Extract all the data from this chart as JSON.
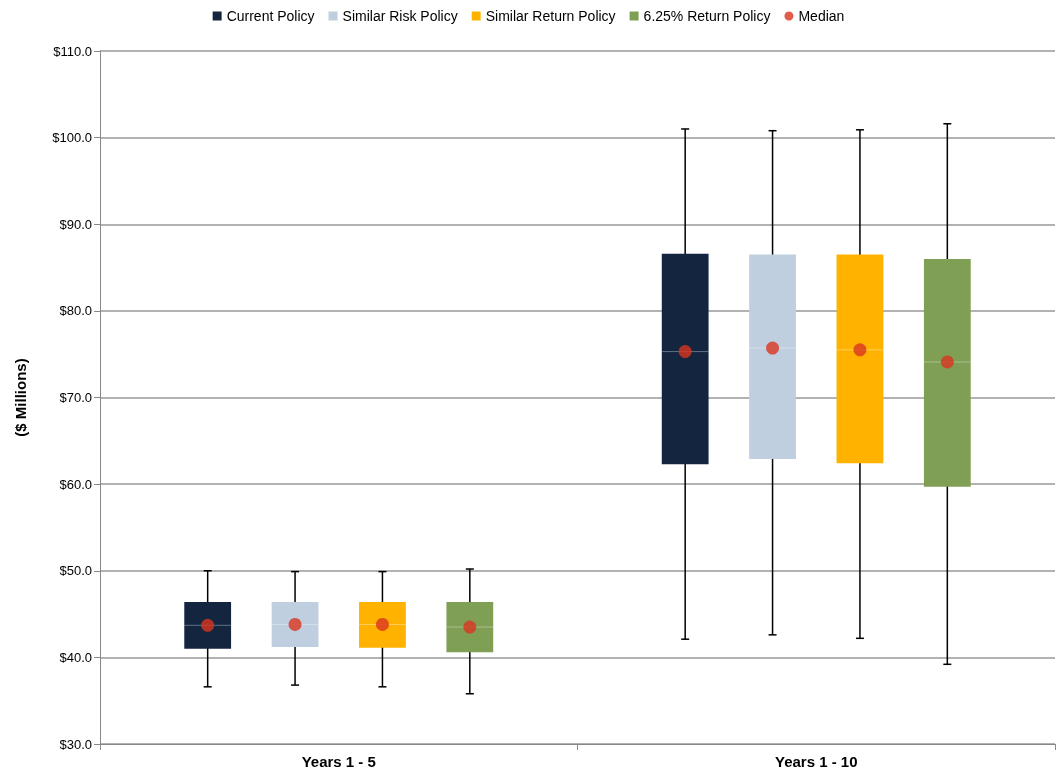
{
  "chart_data": {
    "type": "box",
    "ylabel": "($ Millions)",
    "categories": [
      "Years 1 - 5",
      "Years 1 - 10"
    ],
    "ylim": [
      30,
      110
    ],
    "yticks": [
      {
        "value": 30,
        "label": "$30.0"
      },
      {
        "value": 40,
        "label": "$40.0"
      },
      {
        "value": 50,
        "label": "$50.0"
      },
      {
        "value": 60,
        "label": "$60.0"
      },
      {
        "value": 70,
        "label": "$70.0"
      },
      {
        "value": 80,
        "label": "$80.0"
      },
      {
        "value": 90,
        "label": "$90.0"
      },
      {
        "value": 100,
        "label": "$100.0"
      },
      {
        "value": 110,
        "label": "$110.0"
      }
    ],
    "grid": "y",
    "legend": "top",
    "series": [
      {
        "name": "Current Policy",
        "color": "#13253f",
        "boxes": [
          {
            "low": 36.6,
            "q1": 41.0,
            "median": 43.7,
            "q3": 46.4,
            "high": 50.0
          },
          {
            "low": 42.1,
            "q1": 62.3,
            "median": 75.3,
            "q3": 86.6,
            "high": 101.0
          }
        ]
      },
      {
        "name": "Similar Risk Policy",
        "color": "#bfcfdf",
        "boxes": [
          {
            "low": 36.8,
            "q1": 41.2,
            "median": 43.8,
            "q3": 46.4,
            "high": 49.9
          },
          {
            "low": 42.6,
            "q1": 62.9,
            "median": 75.7,
            "q3": 86.5,
            "high": 100.8
          }
        ]
      },
      {
        "name": "Similar Return Policy",
        "color": "#ffb300",
        "boxes": [
          {
            "low": 36.6,
            "q1": 41.1,
            "median": 43.8,
            "q3": 46.4,
            "high": 49.9
          },
          {
            "low": 42.2,
            "q1": 62.4,
            "median": 75.5,
            "q3": 86.5,
            "high": 100.9
          }
        ]
      },
      {
        "name": "6.25% Return Policy",
        "color": "#7f9f55",
        "boxes": [
          {
            "low": 35.8,
            "q1": 40.6,
            "median": 43.5,
            "q3": 46.4,
            "high": 50.2
          },
          {
            "low": 39.2,
            "q1": 59.7,
            "median": 74.1,
            "q3": 86.0,
            "high": 101.6
          }
        ]
      },
      {
        "name": "Median",
        "type": "scatter",
        "color": "#d9341f",
        "marker": "circle",
        "x": [
          "Years 1 - 5",
          "Years 1 - 5",
          "Years 1 - 5",
          "Years 1 - 5",
          "Years 1 - 10",
          "Years 1 - 10",
          "Years 1 - 10",
          "Years 1 - 10"
        ],
        "values": [
          43.7,
          43.8,
          43.8,
          43.5,
          75.3,
          75.7,
          75.5,
          74.1
        ]
      }
    ]
  }
}
